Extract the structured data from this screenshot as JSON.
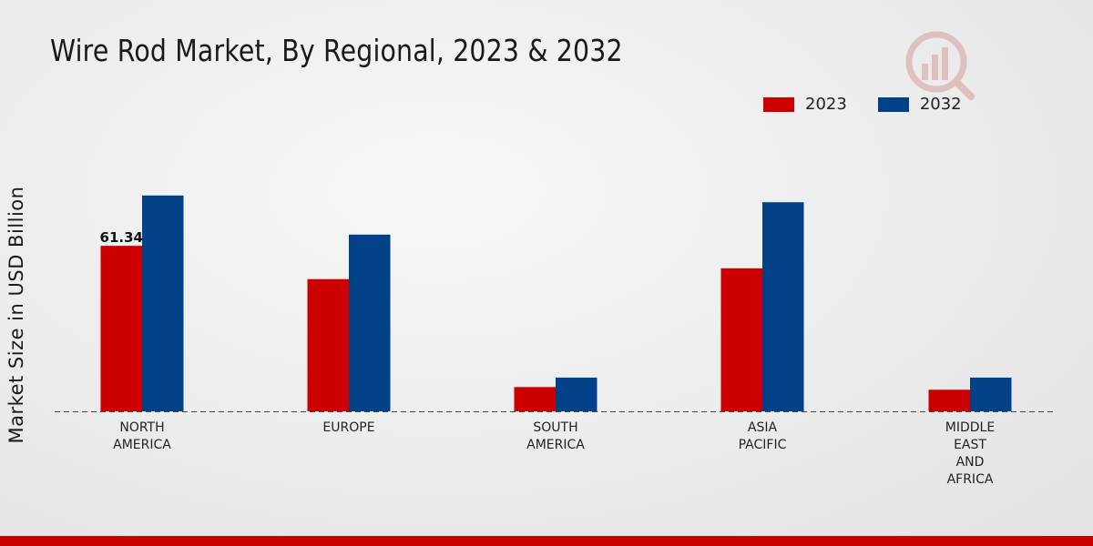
{
  "chart_data": {
    "type": "bar",
    "title": "Wire Rod Market, By Regional, 2023 & 2032",
    "xlabel": "",
    "ylabel": "Market Size in USD Billion",
    "categories": [
      "NORTH\nAMERICA",
      "EUROPE",
      "SOUTH\nAMERICA",
      "ASIA\nPACIFIC",
      "MIDDLE\nEAST\nAND\nAFRICA"
    ],
    "series": [
      {
        "name": "2023",
        "color": "#cc0000",
        "values": [
          61.34,
          49.0,
          9.0,
          53.0,
          8.0
        ]
      },
      {
        "name": "2032",
        "color": "#004187",
        "values": [
          80.0,
          65.5,
          12.5,
          77.5,
          12.5
        ]
      }
    ],
    "data_labels": [
      {
        "series": 0,
        "index": 0,
        "text": "61.34"
      }
    ],
    "ylim": [
      0,
      85
    ],
    "grid": false,
    "legend_position": "top-right"
  }
}
